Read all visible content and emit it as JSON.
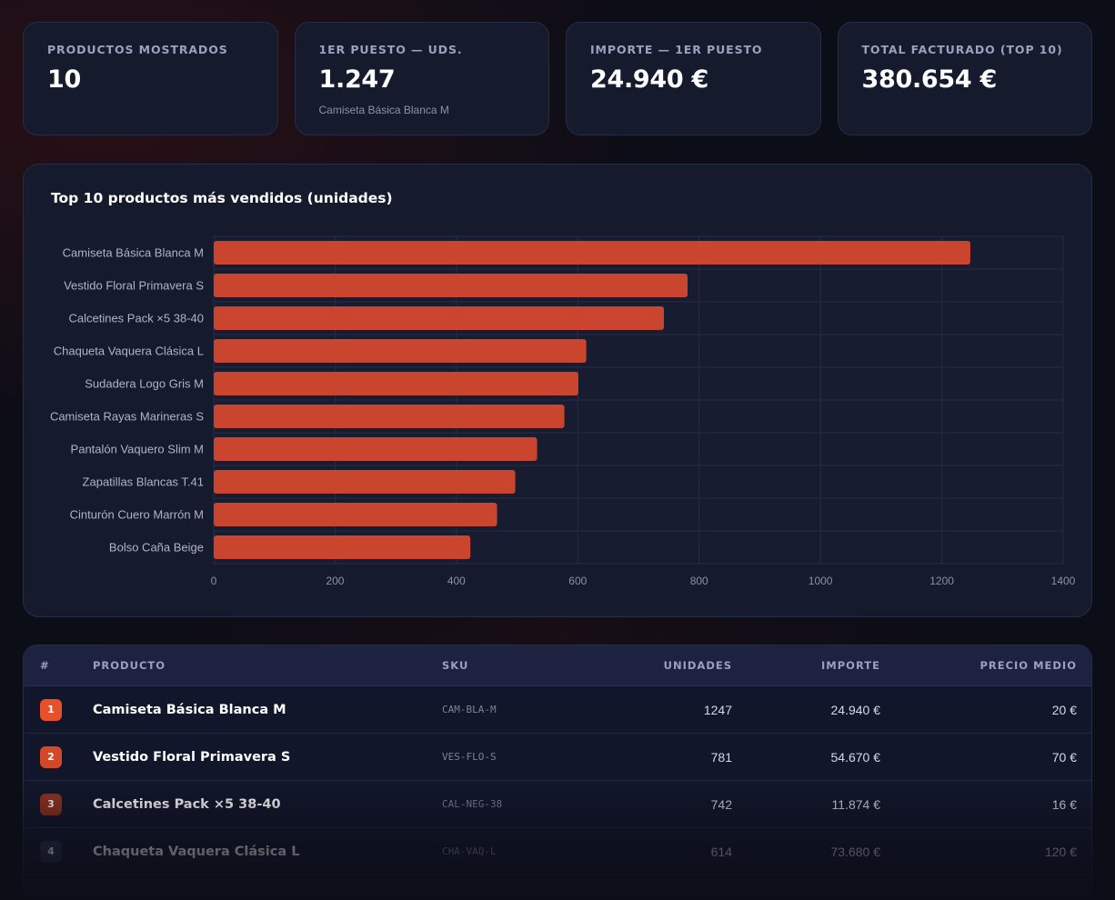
{
  "kpis": [
    {
      "label": "PRODUCTOS MOSTRADOS",
      "value": "10",
      "sub": ""
    },
    {
      "label": "1ER PUESTO — UDS.",
      "value": "1.247",
      "sub": "Camiseta Básica Blanca M"
    },
    {
      "label": "IMPORTE — 1ER PUESTO",
      "value": "24.940 €",
      "sub": ""
    },
    {
      "label": "TOTAL FACTURADO (TOP 10)",
      "value": "380.654 €",
      "sub": ""
    }
  ],
  "colors": {
    "bar": "#c9452e",
    "rank_1": "#e8502c",
    "rank_2": "#d24829",
    "rank_3": "#93331f",
    "rank_4": "#2a2f49"
  },
  "chart_data": {
    "type": "bar",
    "orientation": "horizontal",
    "title": "Top 10 productos más vendidos (unidades)",
    "categories": [
      "Camiseta Básica Blanca M",
      "Vestido Floral Primavera S",
      "Calcetines Pack ×5 38-40",
      "Chaqueta Vaquera Clásica L",
      "Sudadera Logo Gris M",
      "Camiseta Rayas Marineras S",
      "Pantalón Vaquero Slim M",
      "Zapatillas Blancas T.41",
      "Cinturón Cuero Marrón M",
      "Bolso Caña Beige"
    ],
    "values": [
      1247,
      781,
      742,
      614,
      601,
      578,
      533,
      497,
      467,
      423
    ],
    "xlim": [
      0,
      1400
    ],
    "xticks": [
      0,
      200,
      400,
      600,
      800,
      1000,
      1200,
      1400
    ],
    "xlabel": "",
    "ylabel": "",
    "grid": true,
    "legend": "none"
  },
  "table": {
    "headers": {
      "num": "#",
      "producto": "PRODUCTO",
      "sku": "SKU",
      "unidades": "UNIDADES",
      "importe": "IMPORTE",
      "precio_medio": "PRECIO MEDIO"
    },
    "rows": [
      {
        "rank": "1",
        "producto": "Camiseta Básica Blanca M",
        "sku": "CAM-BLA-M",
        "unidades": "1247",
        "importe": "24.940 €",
        "precio_medio": "20 €"
      },
      {
        "rank": "2",
        "producto": "Vestido Floral Primavera S",
        "sku": "VES-FLO-S",
        "unidades": "781",
        "importe": "54.670 €",
        "precio_medio": "70 €"
      },
      {
        "rank": "3",
        "producto": "Calcetines Pack ×5 38-40",
        "sku": "CAL-NEG-38",
        "unidades": "742",
        "importe": "11.874 €",
        "precio_medio": "16 €"
      },
      {
        "rank": "4",
        "producto": "Chaqueta Vaquera Clásica L",
        "sku": "CHA-VAQ-L",
        "unidades": "614",
        "importe": "73.680 €",
        "precio_medio": "120 €"
      }
    ]
  }
}
